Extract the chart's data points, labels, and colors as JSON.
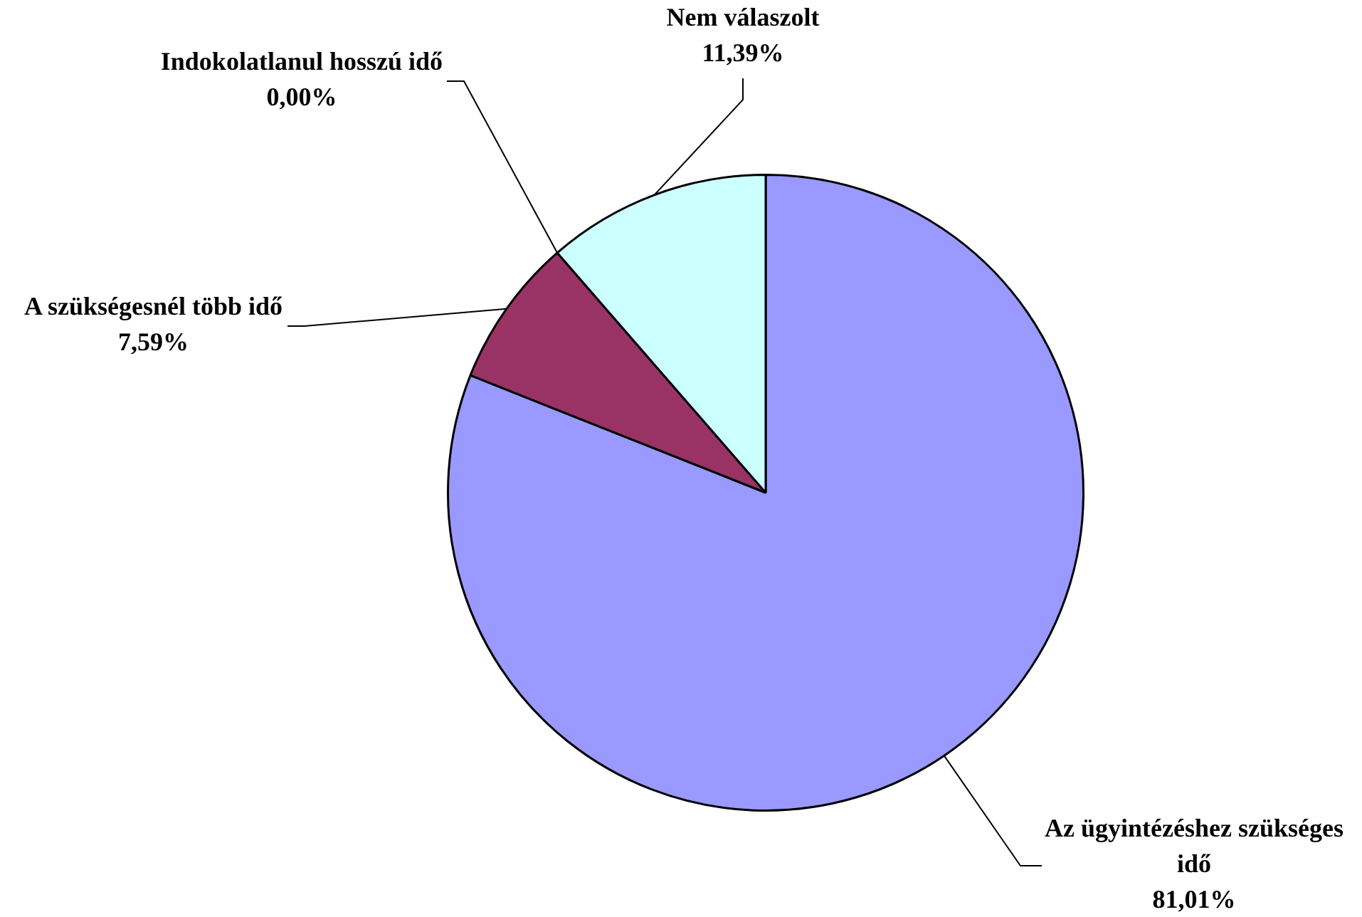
{
  "chart_data": {
    "type": "pie",
    "categories": [
      "Az ügyintézéshez szükséges idő",
      "A szükségesnél több idő",
      "Indokolatlanul hosszú idő",
      "Nem válaszolt"
    ],
    "values": [
      81.01,
      7.59,
      0,
      11.39
    ],
    "colors": [
      "#9999ff",
      "#993366",
      "#ffffcc",
      "#ccffff"
    ],
    "value_labels": [
      "81,01%",
      "7,59%",
      "0,00%",
      "11,39%"
    ]
  }
}
